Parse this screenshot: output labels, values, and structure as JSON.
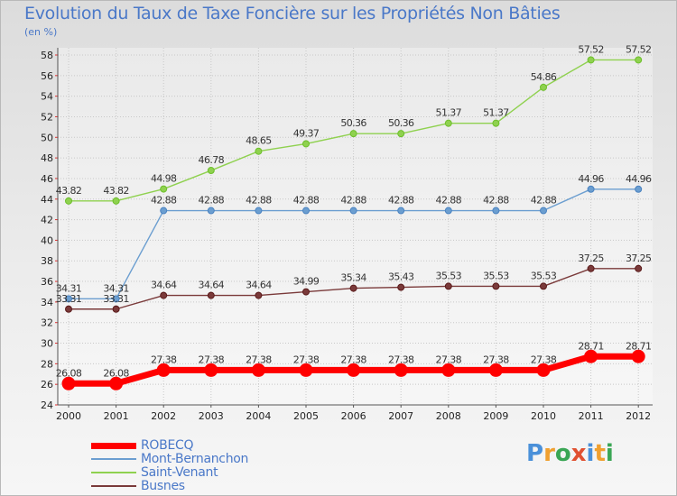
{
  "title": "Evolution du Taux de Taxe Foncière sur les Propriétés Non Bâties",
  "unit_label": "(en %)",
  "brand": {
    "letters": [
      "P",
      "r",
      "o",
      "x",
      "i",
      "t",
      "i"
    ],
    "colors": [
      "#4a90d9",
      "#f0a030",
      "#3aa655",
      "#e05030",
      "#4a90d9",
      "#f0a030",
      "#3aa655"
    ]
  },
  "chart_data": {
    "type": "line",
    "x": [
      "2000",
      "2001",
      "2002",
      "2003",
      "2004",
      "2005",
      "2006",
      "2007",
      "2008",
      "2009",
      "2010",
      "2011",
      "2012"
    ],
    "ylim": [
      24,
      58
    ],
    "yticks": [
      24,
      26,
      28,
      30,
      32,
      34,
      36,
      38,
      40,
      42,
      44,
      46,
      48,
      50,
      52,
      54,
      56,
      58
    ],
    "grid": true,
    "legend_position": "bottom-left",
    "series": [
      {
        "name": "Saint-Venant",
        "color": "#8fd14f",
        "marker": "#6cbf2a",
        "width": 1.4,
        "marker_r": 3.5,
        "values": [
          43.82,
          43.82,
          44.98,
          46.78,
          48.65,
          49.37,
          50.36,
          50.36,
          51.37,
          51.37,
          54.86,
          57.52,
          57.52
        ],
        "labels": [
          "43.82",
          "43.82",
          "44.98",
          "46.78",
          "48.65",
          "49.37",
          "50.36",
          "50.36",
          "51.37",
          "51.37",
          "54.86",
          "57.52",
          "57.52"
        ]
      },
      {
        "name": "Mont-Bernanchon",
        "color": "#6b9ed0",
        "marker": "#4a82c0",
        "width": 1.4,
        "marker_r": 3.5,
        "values": [
          34.31,
          34.31,
          42.88,
          42.88,
          42.88,
          42.88,
          42.88,
          42.88,
          42.88,
          42.88,
          42.88,
          44.96,
          44.96
        ],
        "labels": [
          "34.31",
          "34.31",
          "42.88",
          "42.88",
          "42.88",
          "42.88",
          "42.88",
          "42.88",
          "42.88",
          "42.88",
          "42.88",
          "44.96",
          "44.96"
        ]
      },
      {
        "name": "Busnes",
        "color": "#7a3a3a",
        "marker": "#5a1a1a",
        "width": 1.4,
        "marker_r": 3.5,
        "values": [
          33.31,
          33.31,
          34.64,
          34.64,
          34.64,
          34.99,
          35.34,
          35.43,
          35.53,
          35.53,
          35.53,
          37.25,
          37.25
        ],
        "labels": [
          "33.31",
          "33.31",
          "34.64",
          "34.64",
          "34.64",
          "34.99",
          "35.34",
          "35.43",
          "35.53",
          "35.53",
          "35.53",
          "37.25",
          "37.25"
        ]
      },
      {
        "name": "ROBECQ",
        "color": "#ff0000",
        "marker": "#ff0000",
        "width": 7,
        "marker_r": 7,
        "values": [
          26.08,
          26.08,
          27.38,
          27.38,
          27.38,
          27.38,
          27.38,
          27.38,
          27.38,
          27.38,
          27.38,
          28.71,
          28.71
        ],
        "labels": [
          "26.08",
          "26.08",
          "27.38",
          "27.38",
          "27.38",
          "27.38",
          "27.38",
          "27.38",
          "27.38",
          "27.38",
          "27.38",
          "28.71",
          "28.71"
        ]
      }
    ],
    "legend": [
      {
        "name": "ROBECQ",
        "color": "#ff0000",
        "thickness": 7
      },
      {
        "name": "Mont-Bernanchon",
        "color": "#6b9ed0",
        "thickness": 2
      },
      {
        "name": "Saint-Venant",
        "color": "#8fd14f",
        "thickness": 2
      },
      {
        "name": "Busnes",
        "color": "#7a3a3a",
        "thickness": 2
      }
    ]
  }
}
